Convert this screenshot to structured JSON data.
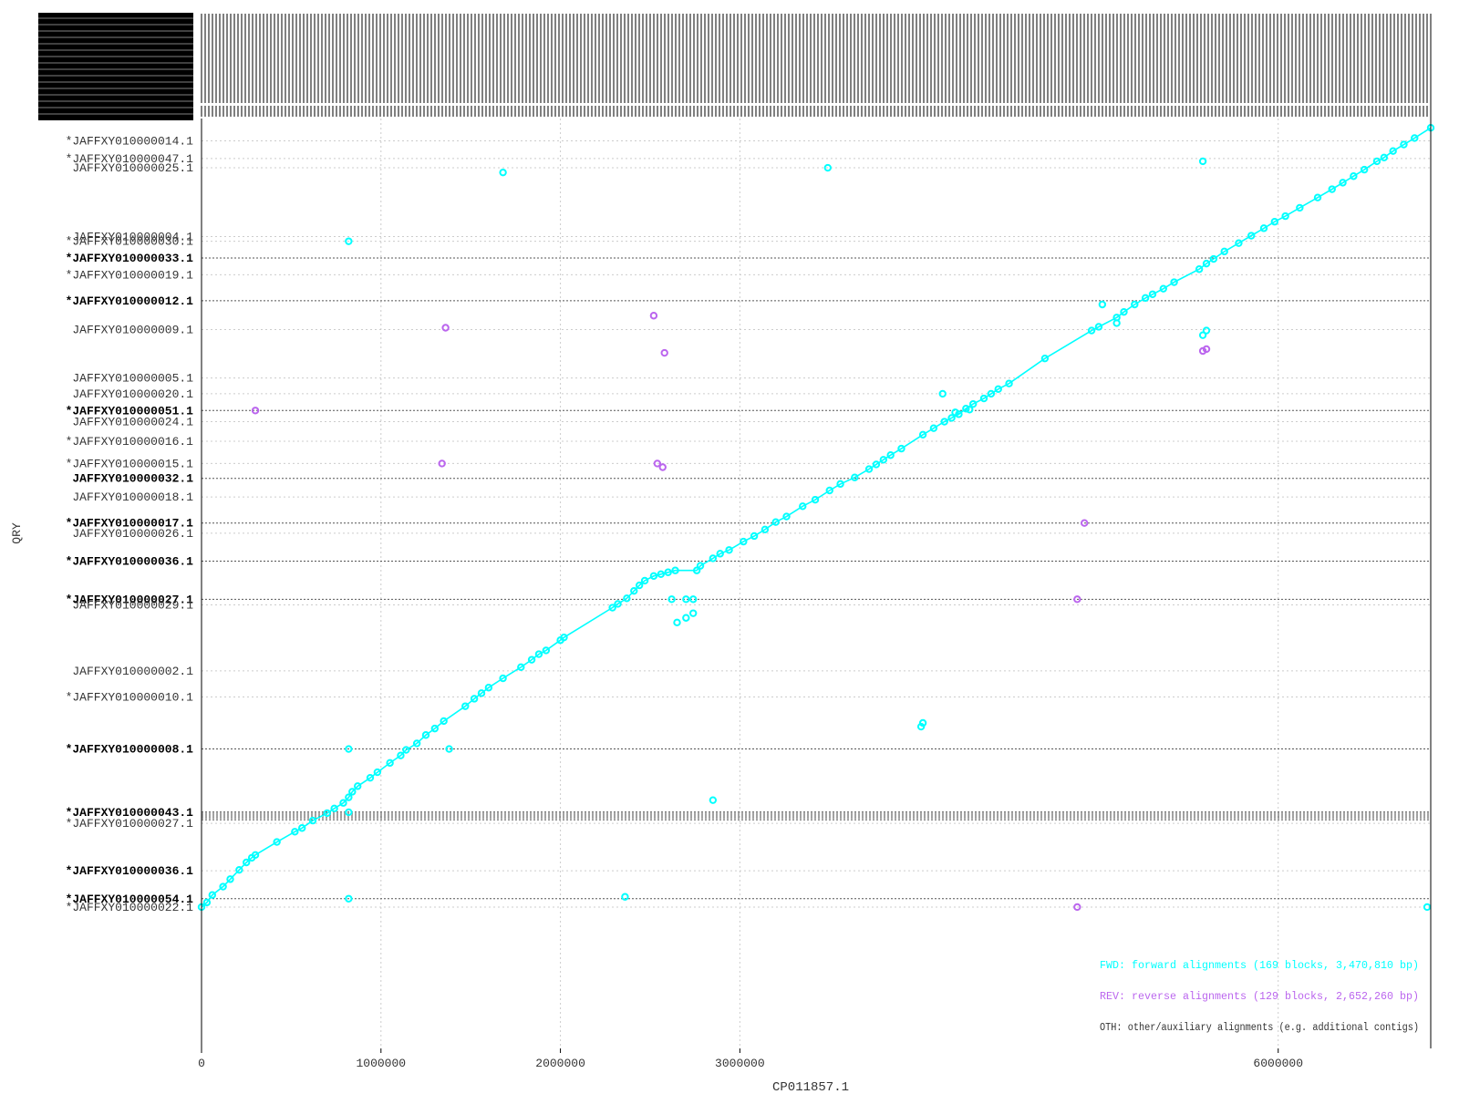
{
  "chart_data": {
    "type": "scatter",
    "xlabel": "CP011857.1",
    "ylabel": "QRY",
    "xlim": [
      0,
      6850000
    ],
    "x_ticks": [
      {
        "value": 0,
        "label": "0"
      },
      {
        "value": 1000000,
        "label": "1000000"
      },
      {
        "value": 2000000,
        "label": "2000000"
      },
      {
        "value": 3000000,
        "label": "3000000"
      },
      {
        "value": 6000000,
        "label": "6000000"
      }
    ],
    "colors": {
      "fwd": "#00ffff",
      "rev": "#bb66ee",
      "oth": "#333333",
      "axis": "#000000",
      "grid": "#cccccc"
    },
    "legend": {
      "placement": "bottom-right",
      "entries": [
        {
          "key": "fwd",
          "text": "FWD: forward alignments (169 blocks, 3,470,810 bp)"
        },
        {
          "key": "rev",
          "text": "REV: reverse alignments (129 blocks, 2,652,260 bp)"
        },
        {
          "key": "oth",
          "text": "OTH: other/auxiliary alignments (e.g. additional contigs)"
        }
      ]
    },
    "y_labels": [
      {
        "text": "*JAFFXY010000014.1",
        "pos": 0.024,
        "bold": false
      },
      {
        "text": "*JAFFXY010000047.1",
        "pos": 0.043,
        "bold": false
      },
      {
        "text": "JAFFXY010000025.1",
        "pos": 0.053,
        "bold": false
      },
      {
        "text": "JAFFXY010000004.1",
        "pos": 0.127,
        "bold": false
      },
      {
        "text": "*JAFFXY010000030.1",
        "pos": 0.132,
        "bold": false
      },
      {
        "text": "*JAFFXY010000033.1",
        "pos": 0.15,
        "bold": true
      },
      {
        "text": "*JAFFXY010000019.1",
        "pos": 0.168,
        "bold": false
      },
      {
        "text": "*JAFFXY010000012.1",
        "pos": 0.196,
        "bold": true
      },
      {
        "text": "JAFFXY010000009.1",
        "pos": 0.227,
        "bold": false
      },
      {
        "text": "JAFFXY010000005.1",
        "pos": 0.279,
        "bold": false
      },
      {
        "text": "JAFFXY010000020.1",
        "pos": 0.296,
        "bold": false
      },
      {
        "text": "*JAFFXY010000051.1",
        "pos": 0.314,
        "bold": true
      },
      {
        "text": "JAFFXY010000024.1",
        "pos": 0.326,
        "bold": false
      },
      {
        "text": "*JAFFXY010000016.1",
        "pos": 0.347,
        "bold": false
      },
      {
        "text": "*JAFFXY010000015.1",
        "pos": 0.371,
        "bold": false
      },
      {
        "text": "JAFFXY010000032.1",
        "pos": 0.387,
        "bold": true
      },
      {
        "text": "JAFFXY010000018.1",
        "pos": 0.407,
        "bold": false
      },
      {
        "text": "*JAFFXY010000017.1",
        "pos": 0.435,
        "bold": true
      },
      {
        "text": "JAFFXY010000026.1",
        "pos": 0.446,
        "bold": false
      },
      {
        "text": "*JAFFXY010000036.1",
        "pos": 0.476,
        "bold": true
      },
      {
        "text": "*JAFFXY010000027.1",
        "pos": 0.517,
        "bold": true
      },
      {
        "text": "JAFFXY010000029.1",
        "pos": 0.523,
        "bold": false
      },
      {
        "text": "JAFFXY010000002.1",
        "pos": 0.594,
        "bold": false
      },
      {
        "text": "*JAFFXY010000010.1",
        "pos": 0.622,
        "bold": false
      },
      {
        "text": "*JAFFXY010000008.1",
        "pos": 0.678,
        "bold": true
      },
      {
        "text": "*JAFFXY010000043.1",
        "pos": 0.746,
        "bold": true
      },
      {
        "text": "*JAFFXY010000027.1",
        "pos": 0.758,
        "bold": false
      },
      {
        "text": "*JAFFXY010000036.1",
        "pos": 0.809,
        "bold": true
      },
      {
        "text": "*JAFFXY010000054.1",
        "pos": 0.839,
        "bold": true
      },
      {
        "text": "*JAFFXY010000022.1",
        "pos": 0.848,
        "bold": false
      }
    ],
    "dense_y_lines": [
      0.746,
      0.748,
      0.75,
      0.752,
      0.754
    ],
    "bold_y_lines": [
      0.15,
      0.196,
      0.314,
      0.387,
      0.435,
      0.476,
      0.517,
      0.678,
      0.746,
      0.839
    ],
    "series": [
      {
        "name": "FWD",
        "color_key": "fwd",
        "connected": true,
        "x": [
          0,
          30000,
          60000,
          120000,
          160000,
          210000,
          250000,
          280000,
          300000,
          420000,
          520000,
          560000,
          620000,
          700000,
          740000,
          790000,
          820000,
          840000,
          870000,
          940000,
          980000,
          1050000,
          1110000,
          1140000,
          1200000,
          1250000,
          1300000,
          1350000,
          1470000,
          1520000,
          1560000,
          1600000,
          1680000,
          1780000,
          1840000,
          1880000,
          1920000,
          2000000,
          2020000,
          2290000,
          2320000,
          2370000,
          2410000,
          2440000,
          2470000,
          2520000,
          2560000,
          2600000,
          2640000,
          2760000,
          2780000,
          2850000,
          2890000,
          2940000,
          3020000,
          3080000,
          3140000,
          3200000,
          3260000,
          3350000,
          3420000,
          3500000,
          3560000,
          3640000,
          3720000,
          3760000,
          3800000,
          3840000,
          3900000,
          4020000,
          4080000,
          4140000,
          4180000,
          4220000,
          4260000,
          4300000,
          4360000,
          4400000,
          4440000,
          4500000,
          4700000,
          4960000,
          5000000,
          5100000,
          5140000,
          5200000,
          5260000,
          5300000,
          5360000,
          5420000,
          5560000,
          5600000,
          5640000,
          5700000,
          5780000,
          5850000,
          5920000,
          5980000,
          6040000,
          6120000,
          6220000,
          6300000,
          6360000,
          6420000,
          6480000,
          6550000,
          6590000,
          6640000,
          6700000,
          6760000,
          6850000
        ],
        "y": [
          0.848,
          0.843,
          0.835,
          0.826,
          0.818,
          0.808,
          0.8,
          0.795,
          0.792,
          0.778,
          0.767,
          0.763,
          0.755,
          0.747,
          0.742,
          0.736,
          0.73,
          0.724,
          0.718,
          0.709,
          0.703,
          0.693,
          0.685,
          0.679,
          0.672,
          0.663,
          0.656,
          0.648,
          0.632,
          0.624,
          0.618,
          0.612,
          0.602,
          0.59,
          0.582,
          0.576,
          0.572,
          0.561,
          0.558,
          0.526,
          0.522,
          0.516,
          0.508,
          0.502,
          0.497,
          0.492,
          0.49,
          0.488,
          0.486,
          0.486,
          0.481,
          0.473,
          0.468,
          0.464,
          0.455,
          0.449,
          0.442,
          0.434,
          0.428,
          0.417,
          0.41,
          0.4,
          0.393,
          0.386,
          0.377,
          0.372,
          0.367,
          0.362,
          0.355,
          0.34,
          0.333,
          0.326,
          0.322,
          0.318,
          0.312,
          0.307,
          0.301,
          0.296,
          0.291,
          0.285,
          0.258,
          0.228,
          0.224,
          0.214,
          0.208,
          0.2,
          0.193,
          0.189,
          0.183,
          0.176,
          0.162,
          0.156,
          0.151,
          0.143,
          0.134,
          0.126,
          0.118,
          0.111,
          0.105,
          0.096,
          0.085,
          0.076,
          0.069,
          0.062,
          0.055,
          0.046,
          0.042,
          0.035,
          0.028,
          0.021,
          0.01
        ]
      },
      {
        "name": "FWD-off",
        "color_key": "fwd",
        "connected": false,
        "x": [
          820000,
          1680000,
          3490000,
          5580000,
          820000,
          2620000,
          2700000,
          2740000,
          2650000,
          2700000,
          2740000,
          4020000,
          4010000,
          4130000,
          4200000,
          4280000,
          5580000,
          5600000,
          5020000,
          5100000,
          1380000,
          820000,
          2850000,
          2360000,
          820000,
          6830000
        ],
        "y": [
          0.132,
          0.058,
          0.053,
          0.046,
          0.678,
          0.517,
          0.517,
          0.517,
          0.542,
          0.537,
          0.532,
          0.65,
          0.654,
          0.296,
          0.316,
          0.313,
          0.233,
          0.228,
          0.2,
          0.22,
          0.678,
          0.746,
          0.733,
          0.837,
          0.839,
          0.848
        ]
      },
      {
        "name": "REV",
        "color_key": "rev",
        "connected": false,
        "x": [
          1360000,
          2520000,
          2580000,
          300000,
          1340000,
          2540000,
          2570000,
          4920000,
          4880000,
          4880000,
          5580000,
          5600000
        ],
        "y": [
          0.225,
          0.212,
          0.252,
          0.314,
          0.371,
          0.371,
          0.375,
          0.435,
          0.517,
          0.848,
          0.25,
          0.248
        ]
      }
    ]
  }
}
